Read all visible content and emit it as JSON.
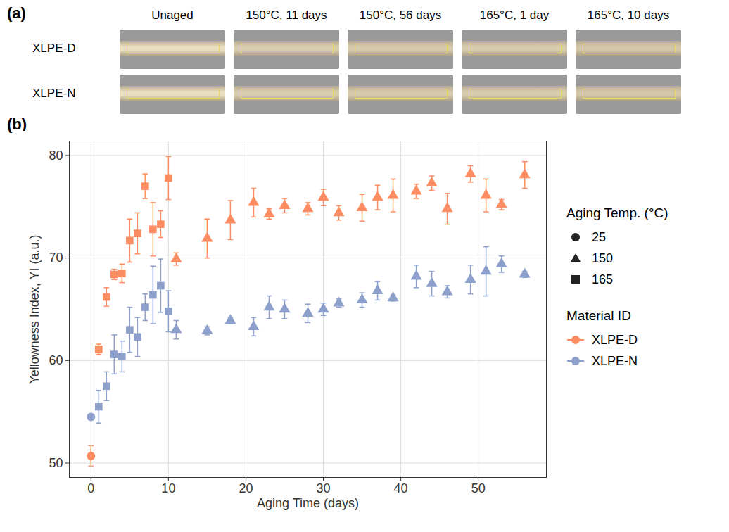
{
  "panel_a": {
    "label": "(a)",
    "columns": [
      "Unaged",
      "150°C, 11 days",
      "150°C, 56 days",
      "165°C, 1 day",
      "165°C, 10 days"
    ],
    "rows": [
      "XLPE-D",
      "XLPE-N"
    ]
  },
  "chart_data": {
    "type": "scatter",
    "panel_label": "(b)",
    "x_label": "Aging Time (days)",
    "y_label": "Yellowness Index, YI (a.u.)",
    "xlim": [
      -2.8,
      58.8
    ],
    "xticks": [
      0,
      10,
      20,
      30,
      40,
      50
    ],
    "ylim": [
      48.6,
      81.4
    ],
    "yticks": [
      50,
      60,
      70,
      80
    ],
    "grid": true,
    "legend": "right",
    "legends": [
      {
        "title": "Aging Temp. (°C)",
        "entries": [
          {
            "name": "25",
            "marker": "circle"
          },
          {
            "name": "150",
            "marker": "triangle"
          },
          {
            "name": "165",
            "marker": "square"
          }
        ]
      },
      {
        "title": "Material ID",
        "entries": [
          {
            "name": "XLPE-D",
            "color": "#FC8D62"
          },
          {
            "name": "XLPE-N",
            "color": "#8DA0CB"
          }
        ]
      }
    ],
    "series": [
      {
        "name": "XLPE-D",
        "aging_temp": "25",
        "color": "#FC8D62",
        "marker": "circle",
        "x": [
          0
        ],
        "values": [
          50.7
        ],
        "error": [
          1.0
        ]
      },
      {
        "name": "XLPE-D",
        "aging_temp": "165",
        "color": "#FC8D62",
        "marker": "square",
        "x": [
          1,
          2,
          3,
          4,
          5,
          6,
          7,
          8,
          9,
          10
        ],
        "values": [
          61.1,
          66.2,
          68.4,
          68.5,
          71.7,
          72.4,
          77.0,
          72.8,
          73.3,
          77.8
        ],
        "error": [
          0.5,
          0.9,
          0.5,
          0.9,
          2.1,
          2.0,
          1.2,
          2.6,
          1.3,
          2.1
        ]
      },
      {
        "name": "XLPE-D",
        "aging_temp": "150",
        "color": "#FC8D62",
        "marker": "triangle",
        "x": [
          11,
          15,
          18,
          21,
          23,
          25,
          28,
          30,
          32,
          35,
          37,
          39,
          42,
          44,
          46,
          49,
          51,
          53,
          56
        ],
        "values": [
          69.9,
          71.9,
          73.7,
          75.4,
          74.3,
          75.1,
          74.8,
          75.9,
          74.4,
          74.9,
          75.9,
          76.1,
          76.5,
          77.3,
          74.8,
          78.2,
          76.1,
          75.2,
          78.1
        ],
        "error": [
          0.6,
          1.9,
          1.9,
          1.4,
          0.5,
          0.7,
          0.6,
          0.8,
          0.7,
          1.3,
          1.2,
          1.6,
          0.7,
          0.7,
          1.5,
          0.8,
          1.6,
          0.5,
          1.3
        ]
      },
      {
        "name": "XLPE-N",
        "aging_temp": "25",
        "color": "#8DA0CB",
        "marker": "circle",
        "x": [
          0
        ],
        "values": [
          54.5
        ],
        "error": [
          0.1
        ]
      },
      {
        "name": "XLPE-N",
        "aging_temp": "165",
        "color": "#8DA0CB",
        "marker": "square",
        "x": [
          1,
          2,
          3,
          4,
          5,
          6,
          7,
          8,
          9,
          10
        ],
        "values": [
          55.5,
          57.5,
          60.6,
          60.4,
          63.0,
          62.3,
          65.2,
          66.4,
          67.3,
          64.8
        ],
        "error": [
          1.6,
          1.4,
          1.9,
          1.5,
          2.2,
          1.9,
          1.3,
          2.8,
          2.6,
          2.0
        ]
      },
      {
        "name": "XLPE-N",
        "aging_temp": "150",
        "color": "#8DA0CB",
        "marker": "triangle",
        "x": [
          11,
          15,
          18,
          21,
          23,
          25,
          28,
          30,
          32,
          35,
          37,
          39,
          42,
          44,
          46,
          49,
          51,
          53,
          56
        ],
        "values": [
          63.0,
          62.9,
          63.9,
          63.3,
          65.2,
          65.0,
          64.6,
          65.0,
          65.6,
          65.9,
          66.8,
          66.1,
          68.2,
          67.5,
          66.7,
          67.9,
          68.7,
          69.4,
          68.4
        ],
        "error": [
          0.9,
          0.4,
          0.3,
          0.9,
          1.1,
          0.9,
          0.9,
          0.6,
          0.4,
          0.7,
          0.9,
          0.3,
          1.1,
          1.2,
          0.6,
          1.4,
          2.4,
          0.8,
          0.3
        ]
      }
    ]
  }
}
